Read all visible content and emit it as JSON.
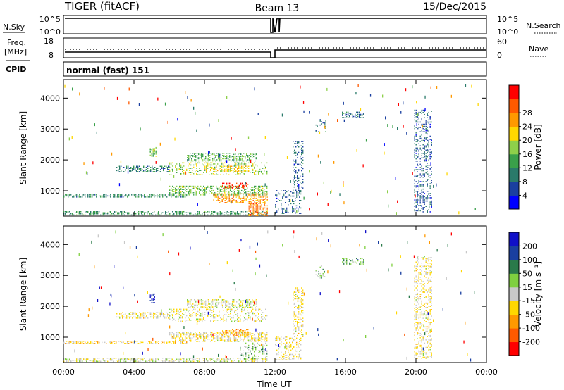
{
  "header": {
    "station": "TIGER (fitACF)",
    "beam": "Beam 13",
    "date": "15/Dec/2015"
  },
  "meta_panels": {
    "nsky_label": "N.Sky",
    "nsearch_label": "N.Search",
    "nsky_ticks": [
      "10^5",
      "10^0"
    ],
    "nsearch_ticks": [
      "10^5",
      "10^0"
    ],
    "freq_label": "Freq.",
    "freq_unit": "[MHz]",
    "freq_ticks": [
      "18",
      "8"
    ],
    "nave_label": "Nave",
    "nave_ticks": [
      "60",
      "0"
    ],
    "cpid_label": "CPID",
    "cpid_value": "normal (fast) 151"
  },
  "colors": {
    "power_scale": [
      "#0000ff",
      "#1a3fa0",
      "#2a7a6a",
      "#3aa04a",
      "#8ed04a",
      "#ffd700",
      "#ff9900",
      "#ff5a00",
      "#ff0000"
    ],
    "velocity_scale": [
      "#1010c8",
      "#1a3fa0",
      "#2a7a4a",
      "#7fd040",
      "#c8c8c8",
      "#ffd700",
      "#ff9900",
      "#ff5a00",
      "#ff0000"
    ]
  },
  "chart_data": [
    {
      "type": "heatmap",
      "panel": "power",
      "ylabel": "Slant Range [km]",
      "x_ticks": [
        "00:00",
        "04:00",
        "08:00",
        "12:00",
        "16:00",
        "20:00",
        "00:00"
      ],
      "y_ticks": [
        "1000",
        "2000",
        "3000",
        "4000"
      ],
      "xlim_hours": [
        0,
        24
      ],
      "ylim_km": [
        180,
        4600
      ],
      "colorbar_label": "Power [dB]",
      "colorbar_ticks": [
        "4",
        "8",
        "12",
        "16",
        "20",
        "24",
        "28"
      ],
      "blobs": [
        {
          "t0": 0.0,
          "t1": 11.6,
          "r0": 200,
          "r1": 330,
          "v": 2.6
        },
        {
          "t0": 0.0,
          "t1": 7.0,
          "r0": 780,
          "r1": 880,
          "v": 2.4
        },
        {
          "t0": 6.0,
          "t1": 11.6,
          "r0": 850,
          "r1": 1150,
          "v": 3.6
        },
        {
          "t0": 8.5,
          "t1": 11.6,
          "r0": 600,
          "r1": 900,
          "v": 6.0
        },
        {
          "t0": 9.0,
          "t1": 10.5,
          "r0": 1050,
          "r1": 1250,
          "v": 8.0
        },
        {
          "t0": 10.5,
          "t1": 11.6,
          "r0": 180,
          "r1": 600,
          "v": 6.5
        },
        {
          "t0": 6.0,
          "t1": 11.6,
          "r0": 1500,
          "r1": 1900,
          "v": 4.0
        },
        {
          "t0": 8.0,
          "t1": 10.5,
          "r0": 1600,
          "r1": 1800,
          "v": 5.2
        },
        {
          "t0": 3.0,
          "t1": 6.0,
          "r0": 1600,
          "r1": 1800,
          "v": 2.0
        },
        {
          "t0": 4.9,
          "t1": 5.3,
          "r0": 2100,
          "r1": 2400,
          "v": 3.8
        },
        {
          "t0": 7.0,
          "t1": 11.0,
          "r0": 1950,
          "r1": 2200,
          "v": 3.2
        },
        {
          "t0": 12.0,
          "t1": 13.5,
          "r0": 250,
          "r1": 1000,
          "v": 1.5
        },
        {
          "t0": 13.0,
          "t1": 13.6,
          "r0": 1000,
          "r1": 2600,
          "v": 1.5
        },
        {
          "t0": 14.3,
          "t1": 14.9,
          "r0": 2900,
          "r1": 3300,
          "v": 1.6
        },
        {
          "t0": 15.8,
          "t1": 17.0,
          "r0": 3350,
          "r1": 3550,
          "v": 1.6
        },
        {
          "t0": 19.9,
          "t1": 20.9,
          "r0": 300,
          "r1": 3600,
          "v": 1.4
        }
      ]
    },
    {
      "type": "heatmap",
      "panel": "velocity",
      "ylabel": "Slant Range [km]",
      "xlabel": "Time UT",
      "x_ticks": [
        "00:00",
        "04:00",
        "08:00",
        "12:00",
        "16:00",
        "20:00",
        "00:00"
      ],
      "y_ticks": [
        "1000",
        "2000",
        "3000",
        "4000"
      ],
      "xlim_hours": [
        0,
        24
      ],
      "ylim_km": [
        180,
        4600
      ],
      "colorbar_label": "Velocity [m s⁻¹]",
      "colorbar_ticks": [
        "200",
        "100",
        "50",
        "15",
        "-15",
        "-50",
        "-100",
        "-200"
      ],
      "blobs": [
        {
          "t0": 0.0,
          "t1": 11.6,
          "r0": 200,
          "r1": 330,
          "v": 4.0
        },
        {
          "t0": 0.0,
          "t1": 7.0,
          "r0": 780,
          "r1": 880,
          "v": 5.0
        },
        {
          "t0": 6.0,
          "t1": 11.6,
          "r0": 850,
          "r1": 1150,
          "v": 4.5
        },
        {
          "t0": 10.0,
          "t1": 11.6,
          "r0": 300,
          "r1": 800,
          "v": 3.0
        },
        {
          "t0": 9.0,
          "t1": 10.5,
          "r0": 1050,
          "r1": 1250,
          "v": 6.0
        },
        {
          "t0": 6.0,
          "t1": 11.6,
          "r0": 1500,
          "r1": 1900,
          "v": 4.2
        },
        {
          "t0": 3.0,
          "t1": 6.0,
          "r0": 1600,
          "r1": 1800,
          "v": 4.5
        },
        {
          "t0": 4.9,
          "t1": 5.2,
          "r0": 2100,
          "r1": 2400,
          "v": 0.3
        },
        {
          "t0": 7.0,
          "t1": 11.0,
          "r0": 1950,
          "r1": 2200,
          "v": 4.0
        },
        {
          "t0": 12.0,
          "t1": 13.5,
          "r0": 250,
          "r1": 1000,
          "v": 4.5
        },
        {
          "t0": 13.0,
          "t1": 13.6,
          "r0": 1000,
          "r1": 2600,
          "v": 4.5
        },
        {
          "t0": 14.3,
          "t1": 14.9,
          "r0": 2900,
          "r1": 3300,
          "v": 3.0
        },
        {
          "t0": 15.8,
          "t1": 17.0,
          "r0": 3350,
          "r1": 3550,
          "v": 2.5
        },
        {
          "t0": 19.9,
          "t1": 20.9,
          "r0": 300,
          "r1": 3600,
          "v": 4.5
        }
      ]
    }
  ]
}
